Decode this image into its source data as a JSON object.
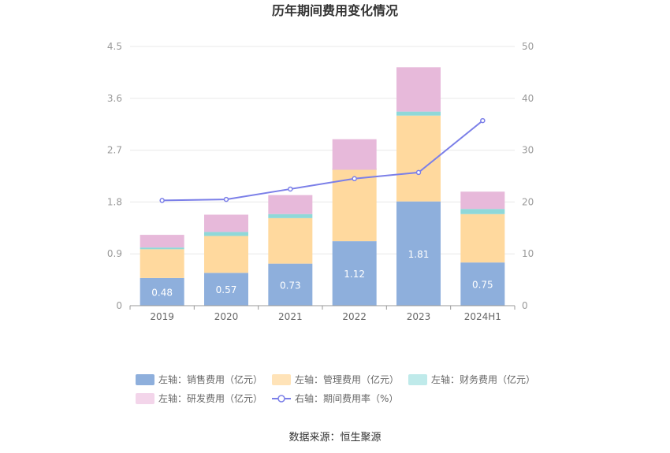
{
  "chart_data": {
    "type": "bar",
    "title": "历年期间费用变化情况",
    "categories": [
      "2019",
      "2020",
      "2021",
      "2022",
      "2023",
      "2024H1"
    ],
    "y_left": {
      "ticks": [
        "0",
        "0.9",
        "1.8",
        "2.7",
        "3.6",
        "4.5"
      ],
      "range": [
        0,
        4.5
      ]
    },
    "y_right": {
      "ticks": [
        "0",
        "10",
        "20",
        "30",
        "40",
        "50"
      ],
      "range": [
        0,
        50
      ]
    },
    "series": [
      {
        "name": "左轴：销售费用（亿元）",
        "axis": "left",
        "kind": "bar",
        "color": "#8eafdc",
        "values": [
          0.48,
          0.57,
          0.73,
          1.12,
          1.81,
          0.75
        ],
        "labels": [
          "0.48",
          "0.57",
          "0.73",
          "1.12",
          "1.81",
          "0.75"
        ]
      },
      {
        "name": "左轴：管理费用（亿元）",
        "axis": "left",
        "kind": "bar",
        "color": "#ffd99e",
        "values": [
          0.5,
          0.64,
          0.79,
          1.26,
          1.49,
          0.84
        ]
      },
      {
        "name": "左轴：财务费用（亿元）",
        "axis": "left",
        "kind": "bar",
        "color": "#8fd8d8",
        "values": [
          0.03,
          0.07,
          0.07,
          -0.02,
          0.07,
          0.09
        ]
      },
      {
        "name": "左轴：研发费用（亿元）",
        "axis": "left",
        "kind": "bar",
        "color": "#e7b9da",
        "values": [
          0.22,
          0.3,
          0.33,
          0.53,
          0.77,
          0.3
        ]
      },
      {
        "name": "右轴：期间费用率（%）",
        "axis": "right",
        "kind": "line",
        "color": "#7b7fe8",
        "values": [
          20.3,
          20.5,
          22.5,
          24.5,
          25.7,
          35.7
        ]
      }
    ],
    "legend_position": "bottom",
    "grid": true
  },
  "legend": [
    {
      "label": "左轴：销售费用（亿元）",
      "color": "#8eafdc",
      "shape": "rect"
    },
    {
      "label": "左轴：管理费用（亿元）",
      "color": "#ffe3b8",
      "shape": "rect"
    },
    {
      "label": "左轴：财务费用（亿元）",
      "color": "#bfeaea",
      "shape": "rect"
    },
    {
      "label": "左轴：研发费用（亿元）",
      "color": "#f3d5ea",
      "shape": "rect"
    },
    {
      "label": "右轴：期间费用率（%）",
      "color": "#7b7fe8",
      "shape": "line"
    }
  ],
  "source": "数据来源：恒生聚源"
}
